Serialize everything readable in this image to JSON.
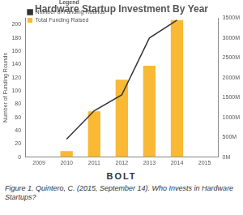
{
  "chart_data": {
    "type": "bar",
    "title": "Hardware Startup Investment By Year",
    "y_label": "Number of Funding Rounds",
    "legend_title": "Legend",
    "legend": "upper left",
    "grid": false,
    "categories": [
      "2009",
      "2010",
      "2011",
      "2012",
      "2013",
      "2014",
      "2015"
    ],
    "series": [
      {
        "name": "Number of Funding Rounds",
        "type": "line",
        "color": "#333333",
        "values": [
          null,
          27,
          70,
          94,
          180,
          207,
          null
        ]
      },
      {
        "name": "Total Funding Raised",
        "type": "bar",
        "color": "#f9b935",
        "axis": "y2",
        "values": [
          null,
          150,
          1150,
          1950,
          2300,
          3450,
          null
        ]
      }
    ],
    "ylim": [
      0,
      210
    ],
    "yticks": [
      0,
      20,
      40,
      60,
      80,
      100,
      120,
      140,
      160,
      180,
      200
    ],
    "y2lim": [
      0,
      3500
    ],
    "y2ticks": [
      {
        "value": 0,
        "label": "0M"
      },
      {
        "value": 500,
        "label": "500M"
      },
      {
        "value": 1000,
        "label": "1000M"
      },
      {
        "value": 1500,
        "label": "1500M"
      },
      {
        "value": 2000,
        "label": "2000M"
      },
      {
        "value": 2500,
        "label": "2500M"
      },
      {
        "value": 3000,
        "label": "3000M"
      },
      {
        "value": 3500,
        "label": "3500M"
      }
    ],
    "logo": "BOLT",
    "caption": "Figure 1. Quintero, C. (2015, September 14). Who Invests in Hardware Startups?"
  }
}
